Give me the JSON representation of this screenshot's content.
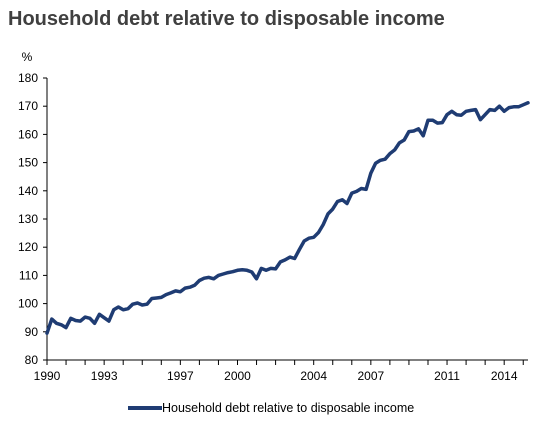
{
  "chart_data": {
    "type": "line",
    "title": "Household debt relative to disposable income",
    "ylabel": "%",
    "xlabel": "",
    "ylim": [
      80,
      180
    ],
    "xlim": [
      1990,
      2015.25
    ],
    "grid": false,
    "legend_position": "bottom",
    "y_ticks": [
      "80",
      "90",
      "100",
      "110",
      "120",
      "130",
      "140",
      "150",
      "160",
      "170",
      "180"
    ],
    "x_ticks": [
      "1990",
      "1993",
      "1997",
      "2000",
      "2004",
      "2007",
      "2011",
      "2014"
    ],
    "series": [
      {
        "name": "Household debt relative to disposable income",
        "color": "#1f3c73",
        "x": [
          1990.0,
          1990.25,
          1990.5,
          1990.75,
          1991.0,
          1991.25,
          1991.5,
          1991.75,
          1992.0,
          1992.25,
          1992.5,
          1992.75,
          1993.0,
          1993.25,
          1993.5,
          1993.75,
          1994.0,
          1994.25,
          1994.5,
          1994.75,
          1995.0,
          1995.25,
          1995.5,
          1995.75,
          1996.0,
          1996.25,
          1996.5,
          1996.75,
          1997.0,
          1997.25,
          1997.5,
          1997.75,
          1998.0,
          1998.25,
          1998.5,
          1998.75,
          1999.0,
          1999.25,
          1999.5,
          1999.75,
          2000.0,
          2000.25,
          2000.5,
          2000.75,
          2001.0,
          2001.25,
          2001.5,
          2001.75,
          2002.0,
          2002.25,
          2002.5,
          2002.75,
          2003.0,
          2003.25,
          2003.5,
          2003.75,
          2004.0,
          2004.25,
          2004.5,
          2004.75,
          2005.0,
          2005.25,
          2005.5,
          2005.75,
          2006.0,
          2006.25,
          2006.5,
          2006.75,
          2007.0,
          2007.25,
          2007.5,
          2007.75,
          2008.0,
          2008.25,
          2008.5,
          2008.75,
          2009.0,
          2009.25,
          2009.5,
          2009.75,
          2010.0,
          2010.25,
          2010.5,
          2010.75,
          2011.0,
          2011.25,
          2011.5,
          2011.75,
          2012.0,
          2012.25,
          2012.5,
          2012.75,
          2013.0,
          2013.25,
          2013.5,
          2013.75,
          2014.0,
          2014.25,
          2014.5,
          2014.75,
          2015.0,
          2015.25
        ],
        "values": [
          89.5,
          94.5,
          93.0,
          92.5,
          91.5,
          94.8,
          94.0,
          93.8,
          95.2,
          94.8,
          93.0,
          96.2,
          95.0,
          93.8,
          97.8,
          98.8,
          97.8,
          98.2,
          99.8,
          100.2,
          99.5,
          99.8,
          101.8,
          102.0,
          102.2,
          103.2,
          103.8,
          104.5,
          104.2,
          105.5,
          105.8,
          106.5,
          108.2,
          109.0,
          109.3,
          108.8,
          110.0,
          110.5,
          111.0,
          111.3,
          111.8,
          112.0,
          111.8,
          111.2,
          108.8,
          112.5,
          111.8,
          112.5,
          112.3,
          114.8,
          115.5,
          116.5,
          116.0,
          119.2,
          122.2,
          123.2,
          123.5,
          125.2,
          128.0,
          131.8,
          133.5,
          136.2,
          136.8,
          135.5,
          139.2,
          139.8,
          140.8,
          140.5,
          146.2,
          149.8,
          150.8,
          151.2,
          153.2,
          154.5,
          157.0,
          158.0,
          161.0,
          161.2,
          162.0,
          159.5,
          165.0,
          165.0,
          164.0,
          164.2,
          167.0,
          168.2,
          167.0,
          166.8,
          168.2,
          168.5,
          168.8,
          165.2,
          167.0,
          168.8,
          168.5,
          170.0,
          168.2,
          169.5,
          169.8,
          169.8,
          170.5,
          171.2
        ]
      }
    ]
  }
}
